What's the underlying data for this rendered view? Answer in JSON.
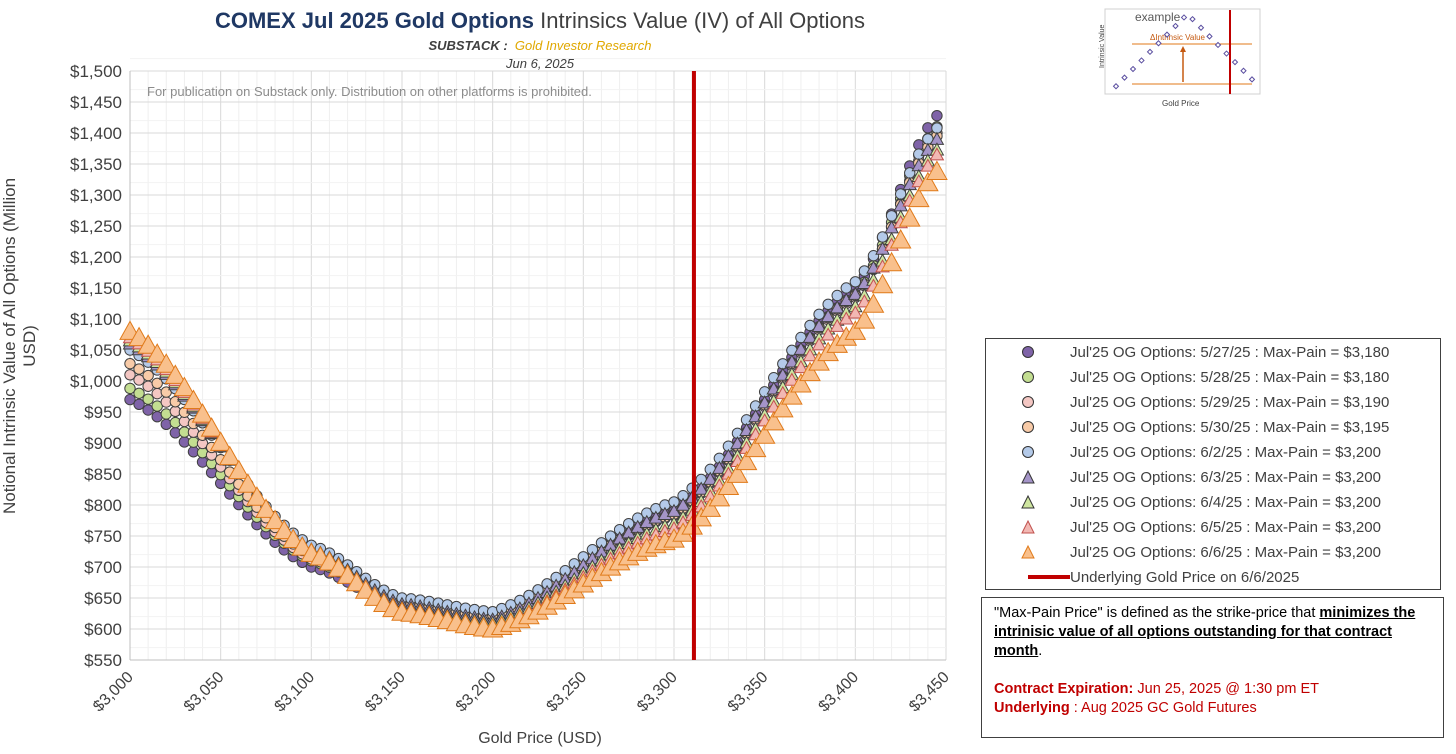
{
  "title": {
    "bold": "COMEX Jul 2025 Gold Options",
    "rest": " Intrinsics Value (IV) of All Options"
  },
  "subtitle": {
    "label": "SUBSTACK :",
    "source": "Gold Investor Research"
  },
  "date": "Jun 6, 2025",
  "watermark": "For publication on Substack only. Distribution on other platforms is prohibited.",
  "axes": {
    "ylabel": "Notional Intrinsic Value of All Options (Million USD)",
    "xlabel": "Gold Price (USD)"
  },
  "legend": [
    {
      "label": "Jul'25 OG Options: 5/27/25 : Max-Pain = $3,180"
    },
    {
      "label": "Jul'25 OG Options: 5/28/25 : Max-Pain = $3,180"
    },
    {
      "label": "Jul'25 OG Options: 5/29/25 : Max-Pain = $3,190"
    },
    {
      "label": "Jul'25 OG Options: 5/30/25 : Max-Pain = $3,195"
    },
    {
      "label": "Jul'25 OG Options: 6/2/25 : Max-Pain = $3,200"
    },
    {
      "label": "Jul'25 OG Options: 6/3/25 : Max-Pain = $3,200"
    },
    {
      "label": "Jul'25 OG Options: 6/4/25 : Max-Pain = $3,200"
    },
    {
      "label": "Jul'25 OG Options: 6/5/25 : Max-Pain = $3,200"
    },
    {
      "label": "Jul'25 OG Options: 6/6/25 : Max-Pain = $3,200"
    },
    {
      "label": "Underlying Gold Price on 6/6/2025"
    }
  ],
  "note": {
    "p1_start": "\"Max-Pain Price\" is defined as the strike-price that ",
    "p1_emph": "minimizes the intrinisic value of all options outstanding for that contract month",
    "p1_end": ".",
    "expiry_label": "Contract Expiration:",
    "expiry_value": " Jun 25, 2025 @ 1:30 pm ET",
    "underlying_label": "Underlying",
    "underlying_value": " : Aug 2025 GC Gold Futures"
  },
  "inset": {
    "title": "example",
    "delta_label": "ΔIntrinsic Value",
    "ylabel": "Intrinsic Value",
    "xlabel": "Gold Price"
  },
  "chart_data": {
    "type": "scatter",
    "xlim": [
      3000,
      3450
    ],
    "ylim": [
      550,
      1500
    ],
    "xticks": [
      3000,
      3050,
      3100,
      3150,
      3200,
      3250,
      3300,
      3350,
      3400,
      3450
    ],
    "xtick_labels": [
      "$3,000",
      "$3,050",
      "$3,100",
      "$3,150",
      "$3,200",
      "$3,250",
      "$3,300",
      "$3,350",
      "$3,400",
      "$3,450"
    ],
    "yticks": [
      550,
      600,
      650,
      700,
      750,
      800,
      850,
      900,
      950,
      1000,
      1050,
      1100,
      1150,
      1200,
      1250,
      1300,
      1350,
      1400,
      1450,
      1500
    ],
    "ytick_labels": [
      "$550",
      "$600",
      "$650",
      "$700",
      "$750",
      "$800",
      "$850",
      "$900",
      "$950",
      "$1,000",
      "$1,050",
      "$1,100",
      "$1,150",
      "$1,200",
      "$1,250",
      "$1,300",
      "$1,350",
      "$1,400",
      "$1,450",
      "$1,500"
    ],
    "x_step": 5,
    "grid": true,
    "series": [
      {
        "name": "Jul'25 OG Options: 5/27/25 : Max-Pain = $3,180",
        "marker": "circle",
        "color": "#7f63a8",
        "key_points": [
          [
            3000,
            970
          ],
          [
            3100,
            700
          ],
          [
            3150,
            635
          ],
          [
            3180,
            620
          ],
          [
            3200,
            622
          ],
          [
            3300,
            790
          ],
          [
            3400,
            1150
          ],
          [
            3445,
            1428
          ]
        ]
      },
      {
        "name": "Jul'25 OG Options: 5/28/25 : Max-Pain = $3,180",
        "marker": "circle",
        "color": "#c3de91",
        "key_points": [
          [
            3000,
            988
          ],
          [
            3100,
            710
          ],
          [
            3150,
            640
          ],
          [
            3180,
            622
          ],
          [
            3200,
            622
          ],
          [
            3300,
            785
          ],
          [
            3400,
            1140
          ],
          [
            3445,
            1410
          ]
        ]
      },
      {
        "name": "Jul'25 OG Options: 5/29/25 : Max-Pain = $3,190",
        "marker": "circle",
        "color": "#f4c7c3",
        "key_points": [
          [
            3000,
            1010
          ],
          [
            3100,
            713
          ],
          [
            3150,
            640
          ],
          [
            3190,
            622
          ],
          [
            3200,
            622
          ],
          [
            3300,
            783
          ],
          [
            3400,
            1135
          ],
          [
            3445,
            1400
          ]
        ]
      },
      {
        "name": "Jul'25 OG Options: 5/30/25 : Max-Pain = $3,195",
        "marker": "circle",
        "color": "#f8cba8",
        "key_points": [
          [
            3000,
            1028
          ],
          [
            3100,
            718
          ],
          [
            3150,
            642
          ],
          [
            3195,
            622
          ],
          [
            3200,
            623
          ],
          [
            3300,
            785
          ],
          [
            3400,
            1138
          ],
          [
            3445,
            1395
          ]
        ]
      },
      {
        "name": "Jul'25 OG Options: 6/2/25 : Max-Pain = $3,200",
        "marker": "circle",
        "color": "#b4cae9",
        "key_points": [
          [
            3000,
            1050
          ],
          [
            3100,
            735
          ],
          [
            3150,
            650
          ],
          [
            3200,
            628
          ],
          [
            3300,
            805
          ],
          [
            3400,
            1160
          ],
          [
            3445,
            1408
          ]
        ]
      },
      {
        "name": "Jul'25 OG Options: 6/3/25 : Max-Pain = $3,200",
        "marker": "triangle",
        "color": "#a494c8",
        "key_points": [
          [
            3000,
            1060
          ],
          [
            3100,
            728
          ],
          [
            3150,
            640
          ],
          [
            3200,
            615
          ],
          [
            3300,
            790
          ],
          [
            3400,
            1140
          ],
          [
            3445,
            1390
          ]
        ]
      },
      {
        "name": "Jul'25 OG Options: 6/4/25 : Max-Pain = $3,200",
        "marker": "triangle",
        "color": "#cfe6a0",
        "key_points": [
          [
            3000,
            1065
          ],
          [
            3100,
            724
          ],
          [
            3150,
            635
          ],
          [
            3200,
            610
          ],
          [
            3300,
            770
          ],
          [
            3400,
            1120
          ],
          [
            3445,
            1373
          ]
        ]
      },
      {
        "name": "Jul'25 OG Options: 6/5/25 : Max-Pain = $3,200",
        "marker": "triangle",
        "color": "#f2b8b3",
        "key_points": [
          [
            3000,
            1070
          ],
          [
            3100,
            722
          ],
          [
            3150,
            632
          ],
          [
            3200,
            605
          ],
          [
            3300,
            762
          ],
          [
            3400,
            1110
          ],
          [
            3445,
            1365
          ]
        ]
      },
      {
        "name": "Jul'25 OG Options: 6/6/25 : Max-Pain = $3,200",
        "marker": "triangle",
        "color": "#f9c08c",
        "key_points": [
          [
            3000,
            1080
          ],
          [
            3100,
            722
          ],
          [
            3150,
            627
          ],
          [
            3200,
            600
          ],
          [
            3300,
            745
          ],
          [
            3400,
            1080
          ],
          [
            3445,
            1338
          ]
        ]
      }
    ],
    "vline": {
      "name": "Underlying Gold Price on 6/6/2025",
      "x": 3311,
      "color": "#c00000"
    }
  }
}
